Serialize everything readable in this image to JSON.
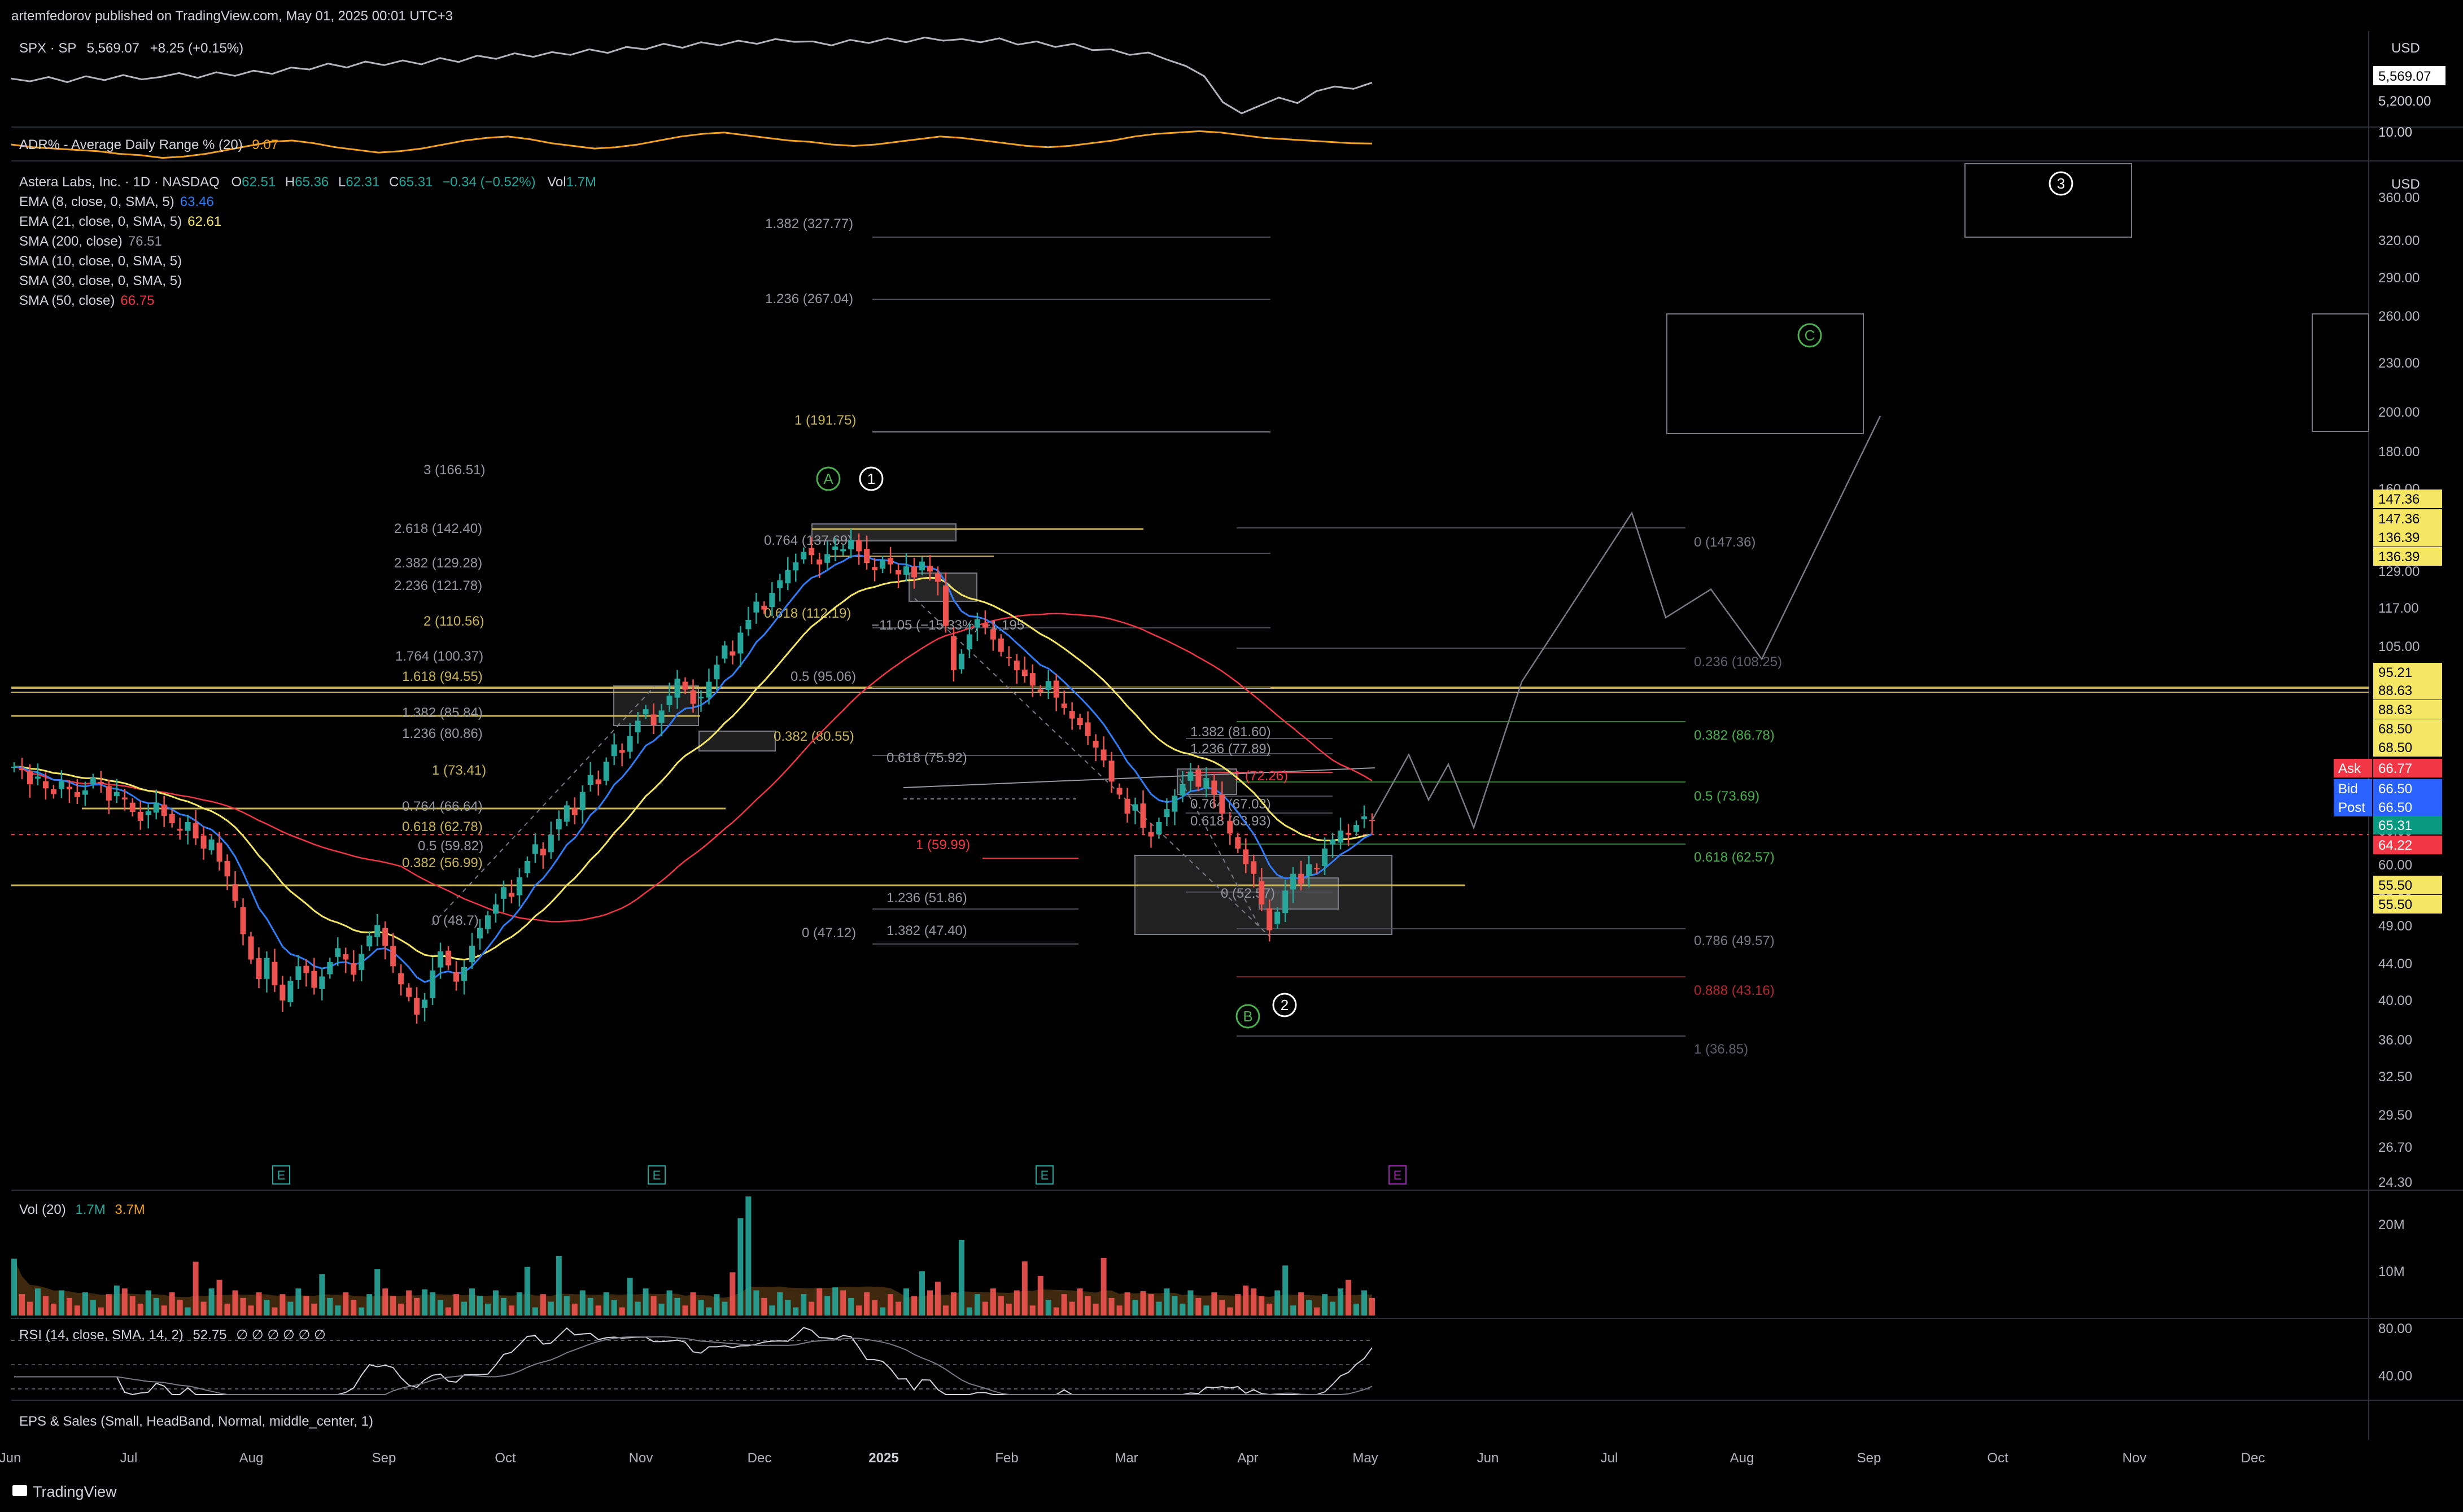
{
  "publish_info": "artemfedorov published on TradingView.com, May 01, 2025 00:01 UTC+3",
  "brand": "TradingView",
  "spx": {
    "legend": {
      "symbol": "SPX · SP",
      "price": "5,569.07",
      "change": "+8.25 (+0.15%)"
    },
    "currency": "USD",
    "axis_labels": [
      {
        "text": "5,569.07",
        "boxed": true,
        "color": "#000000",
        "bg": "#ffffff"
      },
      {
        "text": "5,200.00"
      }
    ],
    "line": {
      "color": "#b2b5be",
      "values": [
        5620,
        5585,
        5640,
        5575,
        5650,
        5600,
        5665,
        5610,
        5640,
        5690,
        5630,
        5700,
        5655,
        5720,
        5680,
        5760,
        5735,
        5810,
        5760,
        5835,
        5790,
        5850,
        5800,
        5880,
        5830,
        5910,
        5870,
        5940,
        5895,
        5955,
        5920,
        5990,
        5945,
        6020,
        5990,
        6060,
        6010,
        6080,
        6040,
        6100,
        6060,
        6120,
        6085,
        6090,
        6040,
        6110,
        6070,
        6130,
        6080,
        6140,
        6100,
        6120,
        6080,
        6130,
        6050,
        6090,
        6020,
        6060,
        5980,
        5990,
        5920,
        5950,
        5860,
        5780,
        5650,
        5320,
        5180,
        5280,
        5380,
        5310,
        5460,
        5520,
        5490,
        5569
      ]
    }
  },
  "adr": {
    "legend": {
      "name": "ADR% - Average Daily Range % (20)",
      "value": "9.07"
    },
    "axis_label": "10.00",
    "line": {
      "color": "#f2a024",
      "values": [
        9.0,
        8.8,
        8.7,
        8.6,
        8.5,
        8.3,
        8.2,
        8.0,
        8.1,
        8.3,
        8.6,
        8.9,
        9.2,
        9.3,
        9.1,
        8.8,
        8.6,
        8.4,
        8.5,
        8.7,
        9.0,
        9.3,
        9.5,
        9.6,
        9.4,
        9.1,
        8.9,
        8.7,
        8.8,
        9.0,
        9.3,
        9.6,
        9.8,
        9.9,
        9.7,
        9.5,
        9.3,
        9.2,
        9.0,
        8.9,
        9.0,
        9.2,
        9.4,
        9.6,
        9.5,
        9.3,
        9.1,
        8.9,
        8.8,
        8.9,
        9.1,
        9.3,
        9.6,
        9.8,
        9.9,
        10.0,
        9.9,
        9.7,
        9.5,
        9.4,
        9.3,
        9.2,
        9.1,
        9.07
      ]
    }
  },
  "main": {
    "currency": "USD",
    "legend": {
      "title": "Astera Labs, Inc. · 1D · NASDAQ",
      "ohlc": [
        {
          "k": "O",
          "v": "62.51"
        },
        {
          "k": "H",
          "v": "65.36"
        },
        {
          "k": "L",
          "v": "62.31"
        },
        {
          "k": "C",
          "v": "65.31"
        }
      ],
      "change": "−0.34 (−0.52%)",
      "vol_label": "Vol",
      "vol_value": "1.7M",
      "indicators": [
        {
          "name": "EMA (8, close, 0, SMA, 5)",
          "value": "63.46",
          "color": "#2f7cf6"
        },
        {
          "name": "EMA (21, close, 0, SMA, 5)",
          "value": "62.61",
          "color": "#f5e663"
        },
        {
          "name": "SMA (200, close)",
          "value": "76.51",
          "color": "#9598a1"
        },
        {
          "name": "SMA (10, close, 0, SMA, 5)",
          "value": "",
          "color": "#9598a1"
        },
        {
          "name": "SMA (30, close, 0, SMA, 5)",
          "value": "",
          "color": "#9598a1"
        },
        {
          "name": "SMA (50, close)",
          "value": "66.75",
          "color": "#f23645"
        }
      ]
    },
    "price_axis": [
      "360.00",
      "320.00",
      "290.00",
      "260.00",
      "230.00",
      "200.00",
      "180.00",
      "160.00",
      "147.36",
      "129.00",
      "117.00",
      "105.00",
      "95.00",
      "86.00",
      "78.00",
      "72.00",
      "66.00",
      "60.00",
      "55.00",
      "49.00",
      "44.00",
      "40.00",
      "36.00",
      "32.50",
      "29.50",
      "26.70",
      "24.30"
    ],
    "price_tags": [
      {
        "text": "147.36",
        "label": "",
        "bg": "#f5e663",
        "fg": "#000000"
      },
      {
        "text": "147.36",
        "label": "",
        "bg": "#f5e663",
        "fg": "#000000"
      },
      {
        "text": "136.39",
        "label": "",
        "bg": "#f5e663",
        "fg": "#000000"
      },
      {
        "text": "136.39",
        "label": "",
        "bg": "#f5e663",
        "fg": "#000000"
      },
      {
        "text": "95.21",
        "label": "",
        "bg": "#f5e663",
        "fg": "#000000"
      },
      {
        "text": "88.63",
        "label": "",
        "bg": "#f5e663",
        "fg": "#000000"
      },
      {
        "text": "88.63",
        "label": "",
        "bg": "#f5e663",
        "fg": "#000000"
      },
      {
        "text": "68.50",
        "label": "",
        "bg": "#f5e663",
        "fg": "#000000"
      },
      {
        "text": "68.50",
        "label": "",
        "bg": "#f5e663",
        "fg": "#000000"
      },
      {
        "text": "66.77",
        "label": "Ask",
        "bg": "#f23645",
        "fg": "#ffffff"
      },
      {
        "text": "66.50",
        "label": "Bid",
        "bg": "#2962ff",
        "fg": "#ffffff"
      },
      {
        "text": "66.50",
        "label": "Post",
        "bg": "#2962ff",
        "fg": "#ffffff"
      },
      {
        "text": "65.31",
        "label": "",
        "bg": "#089981",
        "fg": "#ffffff"
      },
      {
        "text": "64.22",
        "label": "",
        "bg": "#f23645",
        "fg": "#ffffff"
      },
      {
        "text": "55.50",
        "label": "",
        "bg": "#f5e663",
        "fg": "#000000"
      },
      {
        "text": "55.50",
        "label": "",
        "bg": "#f5e663",
        "fg": "#000000"
      }
    ],
    "fib_labels": [
      {
        "text": "1.382 (327.77)",
        "color": "#9598a1"
      },
      {
        "text": "1.236 (267.04)",
        "color": "#9598a1"
      },
      {
        "text": "1 (191.75)",
        "color": "#c9b458"
      },
      {
        "text": "3 (166.51)",
        "color": "#9598a1"
      },
      {
        "text": "2.618 (142.40)",
        "color": "#9598a1"
      },
      {
        "text": "2.382 (129.28)",
        "color": "#9598a1"
      },
      {
        "text": "2.236 (121.78)",
        "color": "#9598a1"
      },
      {
        "text": "2 (110.56)",
        "color": "#c9b458"
      },
      {
        "text": "1.764 (100.37)",
        "color": "#9598a1"
      },
      {
        "text": "1.618 (94.55)",
        "color": "#c9b458"
      },
      {
        "text": "1.382 (85.84)",
        "color": "#9598a1"
      },
      {
        "text": "1.236 (80.86)",
        "color": "#9598a1"
      },
      {
        "text": "1 (73.41)",
        "color": "#c9b458"
      },
      {
        "text": "0.764 (66.64)",
        "color": "#9598a1"
      },
      {
        "text": "0.618 (62.78)",
        "color": "#c9b458"
      },
      {
        "text": "0.5 (59.82)",
        "color": "#9598a1"
      },
      {
        "text": "0.382 (56.99)",
        "color": "#c9b458"
      },
      {
        "text": "0 (48.7)",
        "color": "#9598a1"
      },
      {
        "text": "0.764 (137.69)",
        "color": "#9598a1"
      },
      {
        "text": "0.618 (112.19)",
        "color": "#c9b458"
      },
      {
        "text": "−11.05 (−15.33%) −1,195",
        "color": "#9598a1"
      },
      {
        "text": "0.5 (95.06)",
        "color": "#9598a1"
      },
      {
        "text": "0.382 (80.55)",
        "color": "#c9b458"
      },
      {
        "text": "0.618 (75.92)",
        "color": "#9598a1"
      },
      {
        "text": "1 (59.99)",
        "color": "#f23645"
      },
      {
        "text": "1.236 (51.86)",
        "color": "#9598a1"
      },
      {
        "text": "1.382 (47.40)",
        "color": "#9598a1"
      },
      {
        "text": "0 (47.12)",
        "color": "#9598a1"
      },
      {
        "text": "1.382 (81.60)",
        "color": "#9598a1"
      },
      {
        "text": "1.236 (77.89)",
        "color": "#9598a1"
      },
      {
        "text": "1 (72.26)",
        "color": "#f23645"
      },
      {
        "text": "0.764 (67.03)",
        "color": "#9598a1"
      },
      {
        "text": "0.618 (63.93)",
        "color": "#9598a1"
      },
      {
        "text": "0 (52.57)",
        "color": "#9598a1"
      },
      {
        "text": "0 (147.36)",
        "color": "#787b86"
      },
      {
        "text": "0.236 (108.25)",
        "color": "#5d606b"
      },
      {
        "text": "0.382 (86.78)",
        "color": "#4caf50"
      },
      {
        "text": "0.5 (73.69)",
        "color": "#4caf50"
      },
      {
        "text": "0.618 (62.57)",
        "color": "#4caf50"
      },
      {
        "text": "0.786 (49.57)",
        "color": "#787b86"
      },
      {
        "text": "0.888 (43.16)",
        "color": "#b22833"
      },
      {
        "text": "1 (36.85)",
        "color": "#5d606b"
      }
    ],
    "wave_labels": [
      {
        "text": "A",
        "color": "#4caf50"
      },
      {
        "text": "1",
        "color": "#ffffff"
      },
      {
        "text": "B",
        "color": "#4caf50"
      },
      {
        "text": "2",
        "color": "#ffffff"
      },
      {
        "text": "C",
        "color": "#4caf50"
      },
      {
        "text": "3",
        "color": "#ffffff"
      }
    ],
    "earnings_markers": [
      {
        "text": "E",
        "color": "#26a69a"
      },
      {
        "text": "E",
        "color": "#26a69a"
      },
      {
        "text": "E",
        "color": "#26a69a"
      },
      {
        "text": "E",
        "color": "#9c27b0"
      }
    ]
  },
  "volume": {
    "legend": {
      "name": "Vol (20)",
      "value1": "1.7M",
      "value2": "3.7M"
    },
    "axis_labels": [
      "20M",
      "10M"
    ]
  },
  "rsi": {
    "legend": {
      "name": "RSI (14, close, SMA, 14, 2)",
      "value": "52.75",
      "extras": "∅ ∅ ∅ ∅ ∅ ∅"
    },
    "axis_labels": [
      "80.00",
      "40.00"
    ]
  },
  "eps": {
    "legend": "EPS & Sales (Small, HeadBand, Normal, middle_center, 1)"
  },
  "time_axis": [
    "Jun",
    "Jul",
    "Aug",
    "Sep",
    "Oct",
    "Nov",
    "Dec",
    "2025",
    "Feb",
    "Mar",
    "Apr",
    "May",
    "Jun",
    "Jul",
    "Aug",
    "Sep",
    "Oct",
    "Nov",
    "Dec"
  ],
  "chart_data": {
    "type": "candlestick",
    "symbol": "ALAB",
    "timeframe": "1D",
    "closes": [
      75.5,
      74.8,
      72.0,
      73.5,
      71.2,
      70.1,
      72.6,
      71.0,
      69.5,
      70.8,
      73.2,
      72.1,
      68.9,
      70.5,
      69.1,
      66.8,
      65.2,
      67.0,
      68.5,
      66.1,
      64.8,
      63.5,
      65.0,
      62.2,
      60.5,
      62.0,
      58.4,
      56.1,
      52.5,
      48.0,
      44.8,
      42.5,
      45.0,
      41.8,
      40.1,
      42.3,
      44.0,
      43.2,
      41.5,
      42.8,
      44.5,
      46.2,
      44.8,
      43.0,
      45.5,
      47.8,
      49.2,
      46.5,
      44.0,
      41.9,
      40.5,
      38.6,
      40.2,
      43.5,
      45.8,
      44.1,
      42.2,
      43.9,
      46.5,
      48.8,
      50.5,
      52.0,
      54.5,
      53.1,
      56.0,
      58.5,
      61.2,
      59.4,
      62.8,
      65.5,
      68.0,
      66.2,
      70.5,
      73.8,
      72.0,
      76.5,
      80.2,
      78.4,
      82.0,
      85.5,
      88.2,
      84.5,
      87.9,
      91.5,
      95.8,
      93.0,
      89.5,
      91.2,
      95.0,
      99.5,
      104.8,
      102.0,
      108.5,
      112.3,
      118.0,
      115.5,
      120.8,
      125.0,
      128.5,
      131.2,
      135.0,
      133.8,
      130.5,
      134.2,
      137.0,
      136.0,
      139.5,
      135.2,
      131.0,
      128.5,
      132.0,
      130.5,
      127.0,
      129.8,
      126.0,
      131.5,
      128.0,
      124.5,
      110.5,
      98.0,
      102.5,
      108.0,
      112.5,
      110.0,
      106.5,
      103.0,
      101.5,
      98.0,
      96.5,
      94.0,
      92.5,
      95.2,
      91.0,
      88.5,
      86.0,
      84.5,
      82.0,
      79.5,
      76.8,
      72.5,
      70.0,
      66.5,
      68.2,
      64.0,
      62.5,
      65.0,
      67.3,
      69.8,
      72.0,
      74.5,
      71.5,
      73.2,
      70.0,
      66.5,
      63.0,
      60.5,
      58.0,
      56.5,
      52.0,
      48.5,
      51.0,
      54.0,
      56.5,
      55.0,
      58.0,
      57.2,
      60.5,
      62.0,
      63.5,
      62.8,
      64.5,
      66.0,
      65.31
    ],
    "ema8_last": 63.46,
    "ema21_last": 62.61,
    "sma50_last": 66.75,
    "sma200_last": 76.51,
    "last_close": 65.31,
    "price_scale": "log",
    "ylim": [
      24.3,
      380
    ],
    "projection_path": [
      65.3,
      78,
      69,
      76,
      64,
      95,
      150,
      113,
      122,
      101,
      195
    ],
    "target_boxes": [
      {
        "name": "C",
        "low": 192,
        "high": 268
      },
      {
        "name": "3",
        "low": 328,
        "high": 400
      }
    ],
    "support_zone": {
      "low": 47.4,
      "high": 60.5
    },
    "horizontal_levels": [
      95.21,
      88.63,
      68.5,
      55.5
    ],
    "volume_last": "1.7M",
    "volume_ma": "3.7M",
    "rsi_last": 52.75
  }
}
